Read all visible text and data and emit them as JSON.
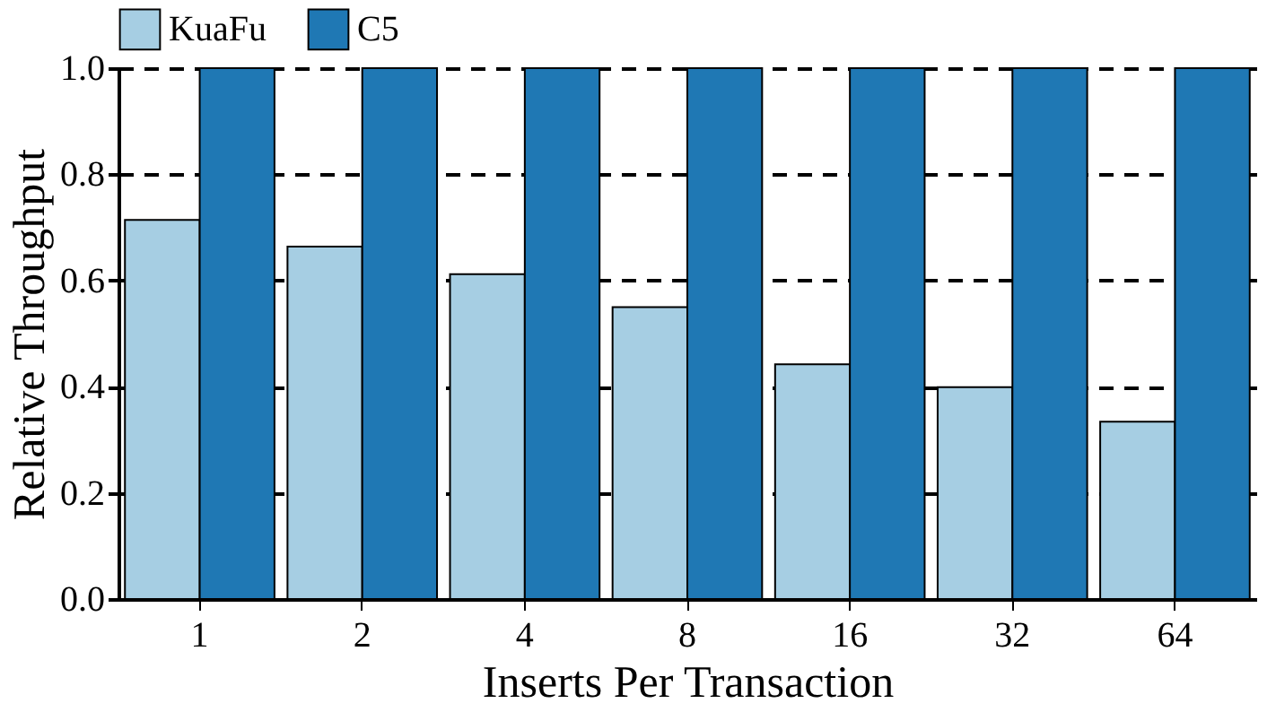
{
  "chart_data": {
    "type": "bar",
    "xlabel": "Inserts Per Transaction",
    "ylabel": "Relative Throughput",
    "categories": [
      "1",
      "2",
      "4",
      "8",
      "16",
      "32",
      "64"
    ],
    "series": [
      {
        "name": "KuaFu",
        "color": "#a6cee3",
        "values": [
          0.714,
          0.664,
          0.612,
          0.55,
          0.442,
          0.399,
          0.334
        ]
      },
      {
        "name": "C5",
        "color": "#1f78b4",
        "values": [
          1.0,
          1.0,
          1.0,
          1.0,
          1.0,
          1.0,
          1.0
        ]
      }
    ],
    "ylim": [
      0,
      1.0
    ],
    "yticks": [
      {
        "value": 0,
        "label": "0.0"
      },
      {
        "value": 0.2,
        "label": "0.2"
      },
      {
        "value": 0.4,
        "label": "0.4"
      },
      {
        "value": 0.6,
        "label": "0.6"
      },
      {
        "value": 0.8,
        "label": "0.8"
      },
      {
        "value": 1.0,
        "label": "1.0"
      }
    ],
    "grid": "y",
    "legend": "top left"
  }
}
